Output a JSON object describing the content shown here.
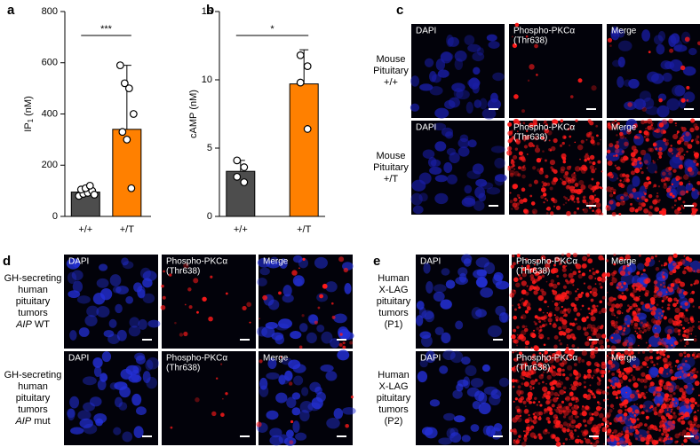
{
  "chart_data": [
    {
      "type": "bar",
      "panel_label": "a",
      "categories": [
        "+/+",
        "+/T"
      ],
      "values": [
        95,
        340
      ],
      "errors": [
        18,
        250
      ],
      "colors": [
        "#4d4d4d",
        "#ff8000"
      ],
      "points": [
        [
          80,
          88,
          92,
          100,
          105,
          110,
          120,
          85
        ],
        [
          590,
          520,
          500,
          400,
          330,
          300,
          110
        ]
      ],
      "ylim": [
        0,
        800
      ],
      "yticks": [
        0,
        200,
        400,
        600,
        800
      ],
      "ylabel": {
        "text": "IP",
        "subscript": "1",
        "unit": "(nM)"
      },
      "annotation": "***"
    },
    {
      "type": "bar",
      "panel_label": "b",
      "categories": [
        "+/+",
        "+/T"
      ],
      "values": [
        3.3,
        9.7
      ],
      "errors": [
        0.8,
        2.5
      ],
      "colors": [
        "#4d4d4d",
        "#ff8000"
      ],
      "points": [
        [
          4.1,
          3.6,
          2.9,
          2.5
        ],
        [
          11.8,
          11.0,
          9.8,
          6.4
        ]
      ],
      "ylim": [
        0,
        15
      ],
      "yticks": [
        0,
        5,
        10,
        15
      ],
      "ylabel": {
        "text": "cAMP",
        "unit": "(nM)"
      },
      "annotation": "*"
    }
  ],
  "panels": [
    {
      "label": "c",
      "columns": [
        {
          "lines": [
            "DAPI"
          ]
        },
        {
          "lines": [
            "Phospho-PKCα",
            "(Thr638)"
          ]
        },
        {
          "lines": [
            "Merge"
          ]
        }
      ],
      "rows": [
        {
          "lines": [
            "Mouse",
            "Pituitary",
            "+/+"
          ]
        },
        {
          "lines": [
            "Mouse",
            "Pituitary",
            "+/T"
          ]
        }
      ]
    },
    {
      "label": "d",
      "columns": [
        {
          "lines": [
            "DAPI"
          ]
        },
        {
          "lines": [
            "Phospho-PKCα",
            "(Thr638)"
          ]
        },
        {
          "lines": [
            "Merge"
          ]
        }
      ],
      "rows": [
        {
          "lines": [
            "GH-secreting",
            "human",
            "pituitary",
            "tumors"
          ],
          "italic": "AIP",
          "tail": "WT"
        },
        {
          "lines": [
            "GH-secreting",
            "human",
            "pituitary",
            "tumors"
          ],
          "italic": "AIP",
          "tail": "mut"
        }
      ]
    },
    {
      "label": "e",
      "columns": [
        {
          "lines": [
            "DAPI"
          ]
        },
        {
          "lines": [
            "Phospho-PKCα",
            "(Thr638)"
          ]
        },
        {
          "lines": [
            "Merge"
          ]
        }
      ],
      "rows": [
        {
          "lines": [
            "Human",
            "X-LAG",
            "pituitary",
            "tumors",
            "(P1)"
          ]
        },
        {
          "lines": [
            "Human",
            "X-LAG",
            "pituitary",
            "tumors",
            "(P2)"
          ]
        }
      ]
    }
  ]
}
